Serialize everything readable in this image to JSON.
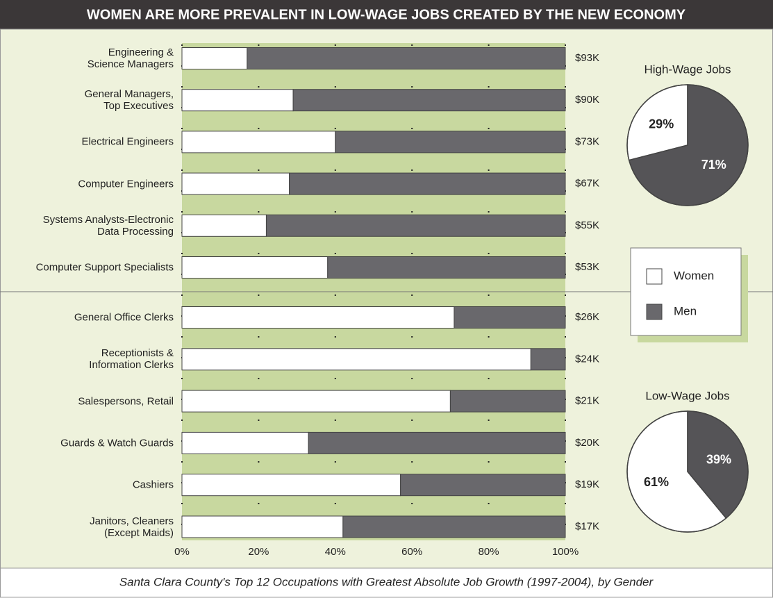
{
  "chart_data": [
    {
      "type": "bar",
      "orientation": "horizontal",
      "stacked": true,
      "title": "WOMEN ARE MORE PREVALENT IN LOW-WAGE JOBS CREATED BY THE NEW ECONOMY",
      "subtitle": "Santa Clara County's Top 12 Occupations with Greatest Absolute Job Growth (1997-2004), by Gender",
      "categories": [
        "Engineering &\nScience Managers",
        "General Managers,\nTop Executives",
        "Electrical Engineers",
        "Computer Engineers",
        "Systems Analysts-Electronic\nData Processing",
        "Computer Support Specialists",
        "General Office Clerks",
        "Receptionists &\nInformation Clerks",
        "Salespersons, Retail",
        "Guards & Watch Guards",
        "Cashiers",
        "Janitors, Cleaners\n(Except Maids)"
      ],
      "wages": [
        "$93K",
        "$90K",
        "$73K",
        "$67K",
        "$55K",
        "$53K",
        "$26K",
        "$24K",
        "$21K",
        "$20K",
        "$19K",
        "$17K"
      ],
      "series": [
        {
          "name": "Women",
          "color": "#ffffff",
          "values": [
            17,
            29,
            40,
            28,
            22,
            38,
            71,
            91,
            70,
            33,
            57,
            42
          ]
        },
        {
          "name": "Men",
          "color": "#69686c",
          "values": [
            83,
            71,
            60,
            72,
            78,
            62,
            29,
            9,
            30,
            67,
            43,
            58
          ]
        }
      ],
      "xlim": [
        0,
        100
      ],
      "xticks": [
        {
          "value": 0,
          "label": "0%"
        },
        {
          "value": 20,
          "label": "20%"
        },
        {
          "value": 40,
          "label": "40%"
        },
        {
          "value": 60,
          "label": "60%"
        },
        {
          "value": 80,
          "label": "80%"
        },
        {
          "value": 100,
          "label": "100%"
        }
      ],
      "grid": true
    },
    {
      "type": "pie",
      "title": "High-Wage Jobs",
      "values": [
        29,
        71
      ],
      "value_labels": [
        "29%",
        "71%"
      ],
      "colors": [
        "#ffffff",
        "#555457"
      ]
    },
    {
      "type": "pie",
      "title": "Low-Wage Jobs",
      "values": [
        61,
        39
      ],
      "value_labels": [
        "61%",
        "39%"
      ],
      "colors": [
        "#ffffff",
        "#555457"
      ]
    }
  ]
}
